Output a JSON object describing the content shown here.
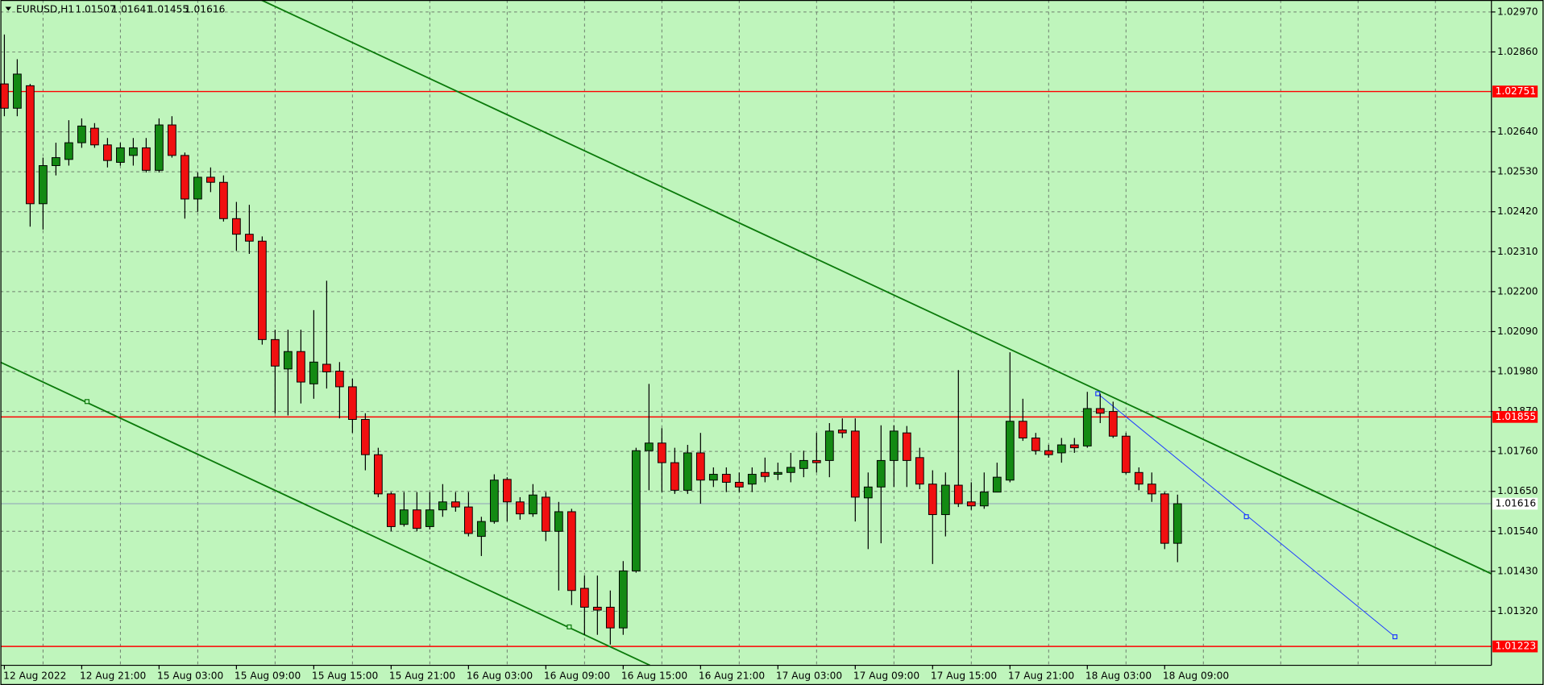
{
  "chart_data": {
    "type": "candlestick",
    "symbol": "EURUSD,H1",
    "background": "#bff5bc",
    "up_color": "#138a13",
    "down_color": "#f01010",
    "wick_color": "#000000",
    "grid": true,
    "categories": [
      "12 Aug 2022",
      null,
      null,
      null,
      null,
      null,
      "12 Aug 21:00",
      null,
      null,
      null,
      null,
      null,
      "15 Aug 03:00",
      null,
      null,
      null,
      null,
      null,
      "15 Aug 09:00",
      null,
      null,
      null,
      null,
      null,
      "15 Aug 15:00",
      null,
      null,
      null,
      null,
      null,
      "15 Aug 21:00",
      null,
      null,
      null,
      null,
      null,
      "16 Aug 03:00",
      null,
      null,
      null,
      null,
      null,
      "16 Aug 09:00",
      null,
      null,
      null,
      null,
      null,
      "16 Aug 15:00",
      null,
      null,
      null,
      null,
      null,
      "16 Aug 21:00",
      null,
      null,
      null,
      null,
      null,
      "17 Aug 03:00",
      null,
      null,
      null,
      null,
      null,
      "17 Aug 09:00",
      null,
      null,
      null,
      null,
      null,
      "17 Aug 15:00",
      null,
      null,
      null,
      null,
      null,
      "17 Aug 21:00",
      null,
      null,
      null,
      null,
      null,
      "18 Aug 03:00",
      null,
      null,
      null,
      null,
      null,
      "18 Aug 09:00",
      null
    ],
    "open": [
      1.02772,
      1.02705,
      1.02767,
      1.02442,
      1.02547,
      1.02564,
      1.0261,
      1.0265,
      1.02604,
      1.02556,
      1.02575,
      1.02596,
      1.02534,
      1.02659,
      1.02575,
      1.02455,
      1.02515,
      1.02501,
      1.02401,
      1.02358,
      1.02339,
      1.02068,
      1.01987,
      1.02035,
      1.01946,
      1.02,
      1.01981,
      1.01938,
      1.01848,
      1.01751,
      1.01643,
      1.01559,
      1.01599,
      1.01553,
      1.01599,
      1.01621,
      1.01607,
      1.01526,
      1.01567,
      1.01683,
      1.01621,
      1.01588,
      1.01634,
      1.0154,
      1.01594,
      1.01383,
      1.01331,
      1.01331,
      1.01274,
      1.01431,
      1.01762,
      1.01783,
      1.01729,
      1.01653,
      1.01756,
      1.01681,
      1.01697,
      1.01675,
      1.0167,
      1.01702,
      1.01697,
      1.01702,
      1.01713,
      1.01735,
      1.01735,
      1.01819,
      1.01816,
      1.01632,
      1.01662,
      1.01735,
      1.01811,
      1.01743,
      1.0167,
      1.01586,
      1.01667,
      1.01621,
      1.0161,
      1.01648,
      1.01681,
      1.01843,
      1.01797,
      1.01762,
      1.01756,
      1.01778,
      1.01775,
      1.01878,
      1.0187,
      1.01802,
      1.01702,
      1.0167,
      1.01643,
      1.01507
    ],
    "high": [
      1.02908,
      1.0284,
      1.02772,
      1.02569,
      1.0261,
      1.02672,
      1.02677,
      1.02664,
      1.02623,
      1.0261,
      1.02623,
      1.02623,
      1.02677,
      1.02683,
      1.02583,
      1.02528,
      1.02542,
      1.0252,
      1.02447,
      1.02439,
      1.02352,
      1.02095,
      1.02095,
      1.02095,
      1.02149,
      1.0223,
      1.02006,
      1.0196,
      1.01865,
      1.0177,
      1.01648,
      1.01648,
      1.01648,
      1.01648,
      1.0167,
      1.01648,
      1.01648,
      1.0158,
      1.01697,
      1.01689,
      1.01634,
      1.0167,
      1.01648,
      1.01621,
      1.01602,
      1.01418,
      1.01418,
      1.01377,
      1.01458,
      1.0177,
      1.01946,
      1.01824,
      1.0177,
      1.01778,
      1.01811,
      1.01716,
      1.01716,
      1.01702,
      1.01716,
      1.01743,
      1.01729,
      1.01756,
      1.01762,
      1.01811,
      1.01838,
      1.01851,
      1.01851,
      1.01702,
      1.01832,
      1.01832,
      1.0183,
      1.0177,
      1.01708,
      1.01702,
      1.01984,
      1.01675,
      1.01702,
      1.01729,
      1.02033,
      1.01905,
      1.01811,
      1.01778,
      1.01797,
      1.01797,
      1.01924,
      1.01919,
      1.01897,
      1.01811,
      1.01716,
      1.01702,
      1.01648,
      1.01641
    ],
    "low": [
      1.02683,
      1.02683,
      1.02379,
      1.02371,
      1.0252,
      1.02547,
      1.02596,
      1.02596,
      1.02542,
      1.02547,
      1.02547,
      1.02528,
      1.02528,
      1.02569,
      1.02401,
      1.0242,
      1.02474,
      1.02393,
      1.02312,
      1.02304,
      1.02054,
      1.01865,
      1.01859,
      1.01892,
      1.01905,
      1.01933,
      1.01851,
      1.01811,
      1.01708,
      1.01634,
      1.0154,
      1.01553,
      1.0154,
      1.01545,
      1.0158,
      1.01594,
      1.01526,
      1.01472,
      1.01561,
      1.01567,
      1.01572,
      1.0158,
      1.01513,
      1.01377,
      1.01337,
      1.01255,
      1.01255,
      1.01228,
      1.01255,
      1.01426,
      1.01653,
      1.01648,
      1.01643,
      1.01643,
      1.01616,
      1.01662,
      1.01648,
      1.01648,
      1.01648,
      1.01675,
      1.01681,
      1.01675,
      1.01689,
      1.01702,
      1.01689,
      1.01797,
      1.01567,
      1.01491,
      1.01507,
      1.01662,
      1.01662,
      1.01656,
      1.0145,
      1.01526,
      1.01607,
      1.01599,
      1.01602,
      1.01648,
      1.01675,
      1.01789,
      1.01751,
      1.01743,
      1.01729,
      1.01756,
      1.0177,
      1.01838,
      1.01797,
      1.01697,
      1.01653,
      1.01621,
      1.01491,
      1.01455
    ],
    "close": [
      1.02705,
      1.02799,
      1.02442,
      1.02547,
      1.02569,
      1.0261,
      1.02656,
      1.02604,
      1.02561,
      1.02596,
      1.02596,
      1.02534,
      1.02659,
      1.02575,
      1.02455,
      1.02515,
      1.02501,
      1.02401,
      1.02358,
      1.02339,
      1.02068,
      1.01995,
      1.02035,
      1.01951,
      1.02006,
      1.01979,
      1.01938,
      1.01848,
      1.01751,
      1.01643,
      1.01553,
      1.01599,
      1.01548,
      1.01599,
      1.01621,
      1.01607,
      1.01534,
      1.01567,
      1.01681,
      1.01621,
      1.01588,
      1.0164,
      1.0154,
      1.01594,
      1.01377,
      1.01331,
      1.01323,
      1.01274,
      1.01431,
      1.01762,
      1.01783,
      1.01729,
      1.01653,
      1.01756,
      1.01681,
      1.01697,
      1.01675,
      1.01662,
      1.01697,
      1.01691,
      1.01702,
      1.01716,
      1.01735,
      1.01729,
      1.01816,
      1.01811,
      1.01634,
      1.01662,
      1.01735,
      1.01816,
      1.01735,
      1.0167,
      1.01586,
      1.01667,
      1.01616,
      1.0161,
      1.01648,
      1.01689,
      1.01843,
      1.01797,
      1.01762,
      1.01751,
      1.01778,
      1.0177,
      1.01878,
      1.01865,
      1.01802,
      1.01702,
      1.0167,
      1.01643,
      1.01507,
      1.01616
    ],
    "ylim": [
      1.01171,
      1.03003
    ],
    "yticks": [
      {
        "value": 1.0297,
        "label": "1.02970"
      },
      {
        "value": 1.0286,
        "label": "1.02860"
      },
      {
        "value": 1.0264,
        "label": "1.02640"
      },
      {
        "value": 1.0253,
        "label": "1.02530"
      },
      {
        "value": 1.0242,
        "label": "1.02420"
      },
      {
        "value": 1.0231,
        "label": "1.02310"
      },
      {
        "value": 1.022,
        "label": "1.02200"
      },
      {
        "value": 1.0209,
        "label": "1.02090"
      },
      {
        "value": 1.0198,
        "label": "1.01980"
      },
      {
        "value": 1.0187,
        "label": "1.01870"
      },
      {
        "value": 1.0176,
        "label": "1.01760"
      },
      {
        "value": 1.0165,
        "label": "1.01650"
      },
      {
        "value": 1.0154,
        "label": "1.01540"
      },
      {
        "value": 1.0143,
        "label": "1.01430"
      },
      {
        "value": 1.0132,
        "label": "1.01320"
      }
    ],
    "levels": [
      {
        "value": 1.02751,
        "color": "#ff0000"
      },
      {
        "value": 1.01855,
        "color": "#ff0000"
      },
      {
        "value": 1.01223,
        "color": "#ff0000"
      }
    ],
    "price_line_color": "#8fa0b8"
  }
}
